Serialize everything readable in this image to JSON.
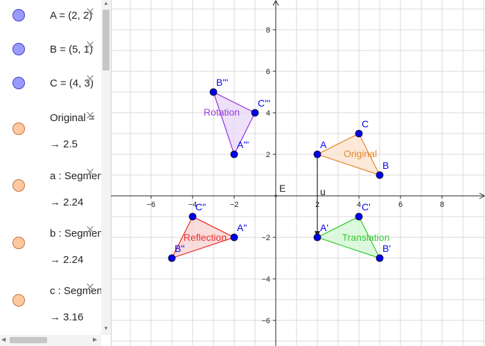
{
  "algebra": {
    "rows": [
      {
        "name": "A",
        "text": "A = (2, 2)",
        "value": "",
        "color": "blue"
      },
      {
        "name": "B",
        "text": "B = (5, 1)",
        "value": "",
        "color": "blue"
      },
      {
        "name": "C",
        "text": "C = (4, 3)",
        "value": "",
        "color": "blue"
      },
      {
        "name": "original",
        "text": "Original =",
        "value": "→  2.5",
        "color": "orange"
      },
      {
        "name": "a",
        "text": "a : Segment",
        "value": "→  2.24",
        "color": "orange"
      },
      {
        "name": "b",
        "text": "b : Segment",
        "value": "→  2.24",
        "color": "orange"
      },
      {
        "name": "c",
        "text": "c : Segment",
        "value": "→  3.16",
        "color": "orange"
      }
    ],
    "delete_glyph": "×"
  },
  "graph": {
    "x_ticks": [
      -6,
      -4,
      -2,
      2,
      4,
      6,
      8
    ],
    "y_ticks": [
      -6,
      -4,
      -2,
      2,
      4,
      6,
      8
    ],
    "origin_label": "E",
    "vector_label": "u",
    "polygons": [
      {
        "name": "original",
        "label": "Original",
        "color": "#e6892f",
        "fill": "#fbe3cf",
        "points": [
          {
            "n": "A",
            "x": 2,
            "y": 2
          },
          {
            "n": "B",
            "x": 5,
            "y": 1
          },
          {
            "n": "C",
            "x": 4,
            "y": 3
          }
        ]
      },
      {
        "name": "translation",
        "label": "Translation",
        "color": "#33cc33",
        "fill": "#d4f7d4",
        "points": [
          {
            "n": "A'",
            "x": 2,
            "y": -2
          },
          {
            "n": "B'",
            "x": 5,
            "y": -3
          },
          {
            "n": "C'",
            "x": 4,
            "y": -1
          }
        ]
      },
      {
        "name": "reflection",
        "label": "Reflection",
        "color": "#e83030",
        "fill": "#f8d3d3",
        "points": [
          {
            "n": "A\"",
            "x": -2,
            "y": -2
          },
          {
            "n": "B\"",
            "x": -5,
            "y": -3
          },
          {
            "n": "C\"",
            "x": -4,
            "y": -1
          }
        ]
      },
      {
        "name": "rotation",
        "label": "Rotation",
        "color": "#9b3ddb",
        "fill": "#e8d8f8",
        "points": [
          {
            "n": "A'''",
            "x": -2,
            "y": 2
          },
          {
            "n": "B'''",
            "x": -3,
            "y": 5
          },
          {
            "n": "C'''",
            "x": -1,
            "y": 4
          }
        ]
      }
    ],
    "vector": {
      "from": {
        "x": 2,
        "y": 2
      },
      "to": {
        "x": 2,
        "y": -2
      }
    },
    "point_color": "#0000ee"
  }
}
